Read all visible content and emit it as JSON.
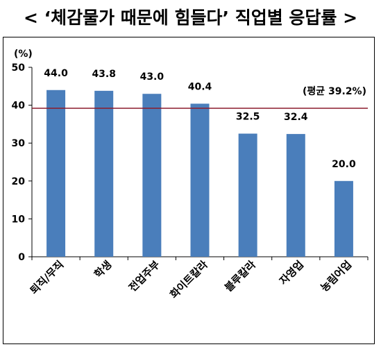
{
  "title": "< ‘체감물가 때문에 힘들다’ 직업별 응답률 >",
  "unit_label": "(%)",
  "average_label": "(평균 39.2%)",
  "colors": {
    "bar": "#4a7ebb",
    "average_line": "#8b1a2b",
    "frame": "#000000"
  },
  "chart_data": {
    "type": "bar",
    "categories": [
      "퇴직/무직",
      "학생",
      "전업주부",
      "화이트칼라",
      "블루칼라",
      "자영업",
      "농림어업"
    ],
    "values": [
      44.0,
      43.8,
      43.0,
      40.4,
      32.5,
      32.4,
      20.0
    ],
    "data_labels": [
      "44.0",
      "43.8",
      "43.0",
      "40.4",
      "32.5",
      "32.4",
      "20.0"
    ],
    "ylim": [
      0,
      50
    ],
    "yticks": [
      0,
      10,
      20,
      30,
      40,
      50
    ],
    "average": 39.2,
    "ylabel": "(%)",
    "xlabel": "",
    "grid": false,
    "legend": "none"
  }
}
